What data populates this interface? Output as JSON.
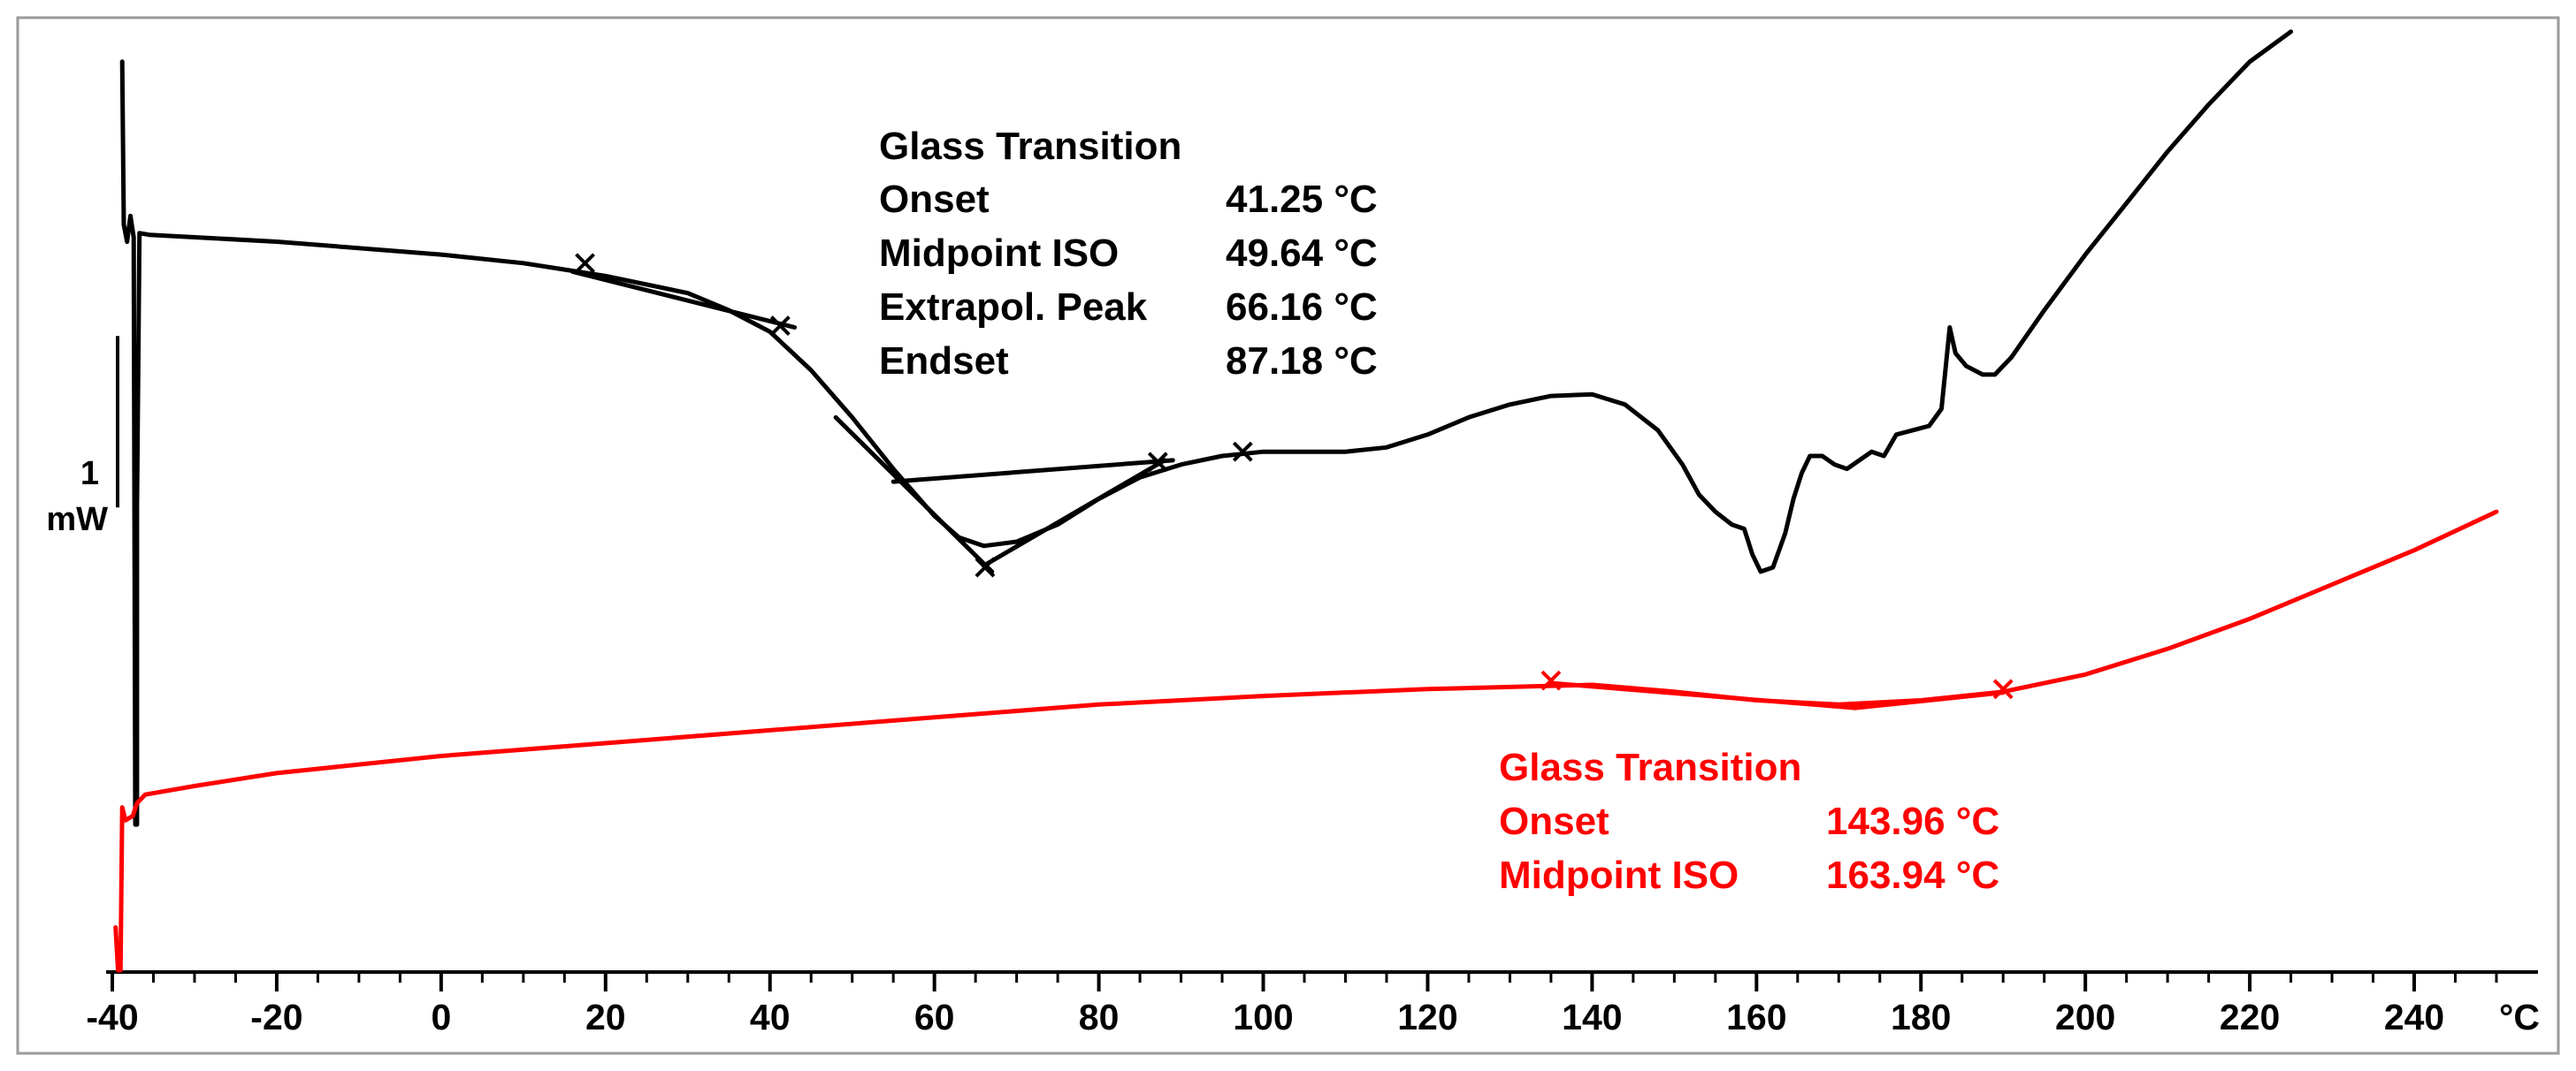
{
  "chart_data": {
    "type": "line",
    "title": "",
    "xlabel": "°C",
    "ylabel": "mW",
    "xlim": [
      -40,
      250
    ],
    "x_ticks": [
      -40,
      -20,
      0,
      20,
      40,
      60,
      80,
      100,
      120,
      140,
      160,
      180,
      200,
      220,
      240
    ],
    "x_tick_labels": [
      "-40",
      "-20",
      "0",
      "20",
      "40",
      "60",
      "80",
      "100",
      "120",
      "140",
      "160",
      "180",
      "200",
      "220",
      "240"
    ],
    "unit_label": "°C",
    "ylim_mw": [
      0,
      11
    ],
    "scale_bar": {
      "value_label": "1",
      "unit_label": "mW"
    },
    "colors": {
      "series_1": "#000000",
      "series_2": "#ff0000",
      "frame": "#9a9a9a"
    },
    "series": [
      {
        "name": "black trace",
        "color": "#000000",
        "points": [
          [
            -38.8,
            10.6
          ],
          [
            -38.6,
            8.7
          ],
          [
            -38.2,
            8.5
          ],
          [
            -37.8,
            8.8
          ],
          [
            -37.4,
            8.55
          ],
          [
            -37.2,
            1.7
          ],
          [
            -37.0,
            1.7
          ],
          [
            -37.0,
            5.4
          ],
          [
            -36.7,
            8.6
          ],
          [
            -35.5,
            8.58
          ],
          [
            -20,
            8.5
          ],
          [
            0,
            8.35
          ],
          [
            10,
            8.25
          ],
          [
            20,
            8.1
          ],
          [
            30,
            7.9
          ],
          [
            35,
            7.7
          ],
          [
            40,
            7.45
          ],
          [
            45,
            7.0
          ],
          [
            50,
            6.45
          ],
          [
            55,
            5.85
          ],
          [
            60,
            5.3
          ],
          [
            63,
            5.05
          ],
          [
            66,
            4.95
          ],
          [
            70,
            5.0
          ],
          [
            75,
            5.2
          ],
          [
            80,
            5.5
          ],
          [
            85,
            5.75
          ],
          [
            90,
            5.9
          ],
          [
            95,
            6.0
          ],
          [
            100,
            6.05
          ],
          [
            110,
            6.05
          ],
          [
            115,
            6.1
          ],
          [
            120,
            6.25
          ],
          [
            125,
            6.45
          ],
          [
            130,
            6.6
          ],
          [
            135,
            6.7
          ],
          [
            140,
            6.72
          ],
          [
            144,
            6.6
          ],
          [
            148,
            6.3
          ],
          [
            151,
            5.9
          ],
          [
            153,
            5.55
          ],
          [
            155,
            5.35
          ],
          [
            157,
            5.2
          ],
          [
            158.5,
            5.15
          ],
          [
            159.5,
            4.85
          ],
          [
            160.5,
            4.65
          ],
          [
            162,
            4.7
          ],
          [
            163.5,
            5.1
          ],
          [
            164.5,
            5.5
          ],
          [
            165.5,
            5.8
          ],
          [
            166.5,
            6.0
          ],
          [
            168,
            6.0
          ],
          [
            169.5,
            5.9
          ],
          [
            171,
            5.85
          ],
          [
            172.5,
            5.95
          ],
          [
            174,
            6.05
          ],
          [
            175.5,
            6.0
          ],
          [
            177,
            6.25
          ],
          [
            179,
            6.3
          ],
          [
            181,
            6.35
          ],
          [
            182.5,
            6.55
          ],
          [
            183.5,
            7.5
          ],
          [
            184.2,
            7.2
          ],
          [
            185.5,
            7.05
          ],
          [
            187.5,
            6.95
          ],
          [
            189,
            6.95
          ],
          [
            191,
            7.15
          ],
          [
            195,
            7.7
          ],
          [
            200,
            8.35
          ],
          [
            205,
            8.95
          ],
          [
            210,
            9.55
          ],
          [
            215,
            10.1
          ],
          [
            220,
            10.6
          ],
          [
            225,
            10.95
          ]
        ]
      },
      {
        "name": "red trace",
        "color": "#ff0000",
        "points": [
          [
            -39.6,
            0.5
          ],
          [
            -39.3,
            0.0
          ],
          [
            -39.0,
            0.0
          ],
          [
            -38.8,
            1.9
          ],
          [
            -38.4,
            1.75
          ],
          [
            -37.5,
            1.8
          ],
          [
            -37.0,
            1.95
          ],
          [
            -36.0,
            2.05
          ],
          [
            -30,
            2.15
          ],
          [
            -20,
            2.3
          ],
          [
            0,
            2.5
          ],
          [
            20,
            2.65
          ],
          [
            40,
            2.8
          ],
          [
            60,
            2.95
          ],
          [
            80,
            3.1
          ],
          [
            100,
            3.2
          ],
          [
            120,
            3.28
          ],
          [
            140,
            3.33
          ],
          [
            150,
            3.25
          ],
          [
            160,
            3.15
          ],
          [
            170,
            3.1
          ],
          [
            180,
            3.15
          ],
          [
            190,
            3.25
          ],
          [
            200,
            3.45
          ],
          [
            210,
            3.75
          ],
          [
            220,
            4.1
          ],
          [
            230,
            4.5
          ],
          [
            240,
            4.9
          ],
          [
            250,
            5.35
          ]
        ]
      }
    ],
    "fit_lines": [
      {
        "color": "#000000",
        "from": [
          16,
          8.15
        ],
        "to": [
          43,
          7.5
        ]
      },
      {
        "color": "#000000",
        "from": [
          48,
          6.45
        ],
        "to": [
          67,
          4.65
        ]
      },
      {
        "color": "#000000",
        "from": [
          55,
          5.7
        ],
        "to": [
          89,
          5.95
        ]
      },
      {
        "color": "#000000",
        "from": [
          66,
          4.72
        ],
        "to": [
          88,
          5.95
        ]
      },
      {
        "color": "#ff0000",
        "from": [
          135,
          3.35
        ],
        "to": [
          172,
          3.06
        ]
      },
      {
        "color": "#ff0000",
        "from": [
          172,
          3.06
        ],
        "to": [
          190,
          3.24
        ]
      }
    ],
    "markers": [
      {
        "color": "#000000",
        "x": 41.25,
        "y": 7.52
      },
      {
        "color": "#000000",
        "x": 66.16,
        "y": 4.7
      },
      {
        "color": "#000000",
        "x": 87.18,
        "y": 5.93
      },
      {
        "color": "#000000",
        "x": 17.5,
        "y": 8.25
      },
      {
        "color": "#000000",
        "x": 97.5,
        "y": 6.05
      },
      {
        "color": "#ff0000",
        "x": 135.0,
        "y": 3.38
      },
      {
        "color": "#ff0000",
        "x": 190.0,
        "y": 3.28
      }
    ],
    "annotations": [
      {
        "color": "#000000",
        "title": "Glass Transition",
        "rows": [
          {
            "label": "Onset",
            "value": "41.25 °C"
          },
          {
            "label": "Midpoint ISO",
            "value": "49.64 °C"
          },
          {
            "label": "Extrapol. Peak",
            "value": "66.16 °C"
          },
          {
            "label": "Endset",
            "value": "87.18 °C"
          }
        ]
      },
      {
        "color": "#ff0000",
        "title": "Glass Transition",
        "rows": [
          {
            "label": "Onset",
            "value": "143.96 °C"
          },
          {
            "label": "Midpoint ISO",
            "value": "163.94 °C"
          }
        ]
      }
    ]
  }
}
